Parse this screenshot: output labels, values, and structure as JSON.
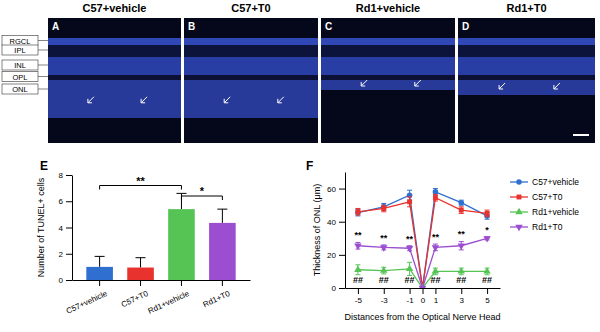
{
  "panels": {
    "labels": [
      "A",
      "B",
      "C",
      "D"
    ],
    "titles": [
      "C57+vehicle",
      "C57+T0",
      "Rd1+vehicle",
      "Rd1+T0"
    ],
    "layers": [
      "RGCL",
      "IPL",
      "INL",
      "OPL",
      "ONL"
    ]
  },
  "chart_data": [
    {
      "type": "bar",
      "panel": "E",
      "categories": [
        "C57+vehicle",
        "C57+T0",
        "Rd1+vehicle",
        "Rd1+T0"
      ],
      "values": [
        1,
        0.95,
        5.4,
        4.35
      ],
      "errors": [
        0.8,
        0.75,
        1.2,
        1.05
      ],
      "colors": [
        "#2f6fd0",
        "#e8322d",
        "#55c455",
        "#9b4fd0"
      ],
      "y_label": "Number of TUNEL+ cells",
      "ylim": [
        0,
        8
      ],
      "yticks": [
        0,
        2,
        4,
        6,
        8
      ],
      "annotations": [
        {
          "text": "**",
          "from": "C57+vehicle",
          "to": "Rd1+vehicle",
          "y": 7.2
        },
        {
          "text": "*",
          "from": "Rd1+vehicle",
          "to": "Rd1+T0",
          "y": 6.4
        }
      ]
    },
    {
      "type": "line",
      "panel": "F",
      "x": [
        -5,
        -3,
        -1,
        0,
        1,
        3,
        5
      ],
      "xlim": [
        -6,
        6
      ],
      "xticks": [
        -5,
        -3,
        -1,
        0,
        1,
        3,
        5
      ],
      "ylim": [
        0,
        70
      ],
      "yticks": [
        0,
        20,
        40,
        60
      ],
      "x_label": "Distances from the Optical Nerve Head",
      "y_label": "Thickness of ONL (μm)",
      "legend": "right",
      "series": [
        {
          "name": "C57+vehicle",
          "color": "#2f6fd0",
          "marker": "circle",
          "values": [
            45.5,
            49,
            56,
            0,
            58,
            51.5,
            43.5
          ],
          "errors": [
            2,
            2,
            3,
            0,
            2,
            1.5,
            2
          ]
        },
        {
          "name": "C57+T0",
          "color": "#e8322d",
          "marker": "square",
          "values": [
            46,
            48,
            52,
            0,
            54.5,
            47,
            45
          ],
          "errors": [
            2,
            2,
            3,
            0,
            2,
            2,
            2
          ]
        },
        {
          "name": "Rd1+vehicle",
          "color": "#55c455",
          "marker": "triangle",
          "values": [
            11,
            10.5,
            11.5,
            0,
            10,
            10,
            10
          ],
          "errors": [
            3,
            2,
            4,
            0,
            2,
            2,
            2
          ]
        },
        {
          "name": "Rd1+T0",
          "color": "#9b4fd0",
          "marker": "triangle-down",
          "values": [
            25.5,
            24.5,
            24,
            0,
            24.5,
            25.5,
            30
          ],
          "errors": [
            2,
            1.5,
            1.5,
            0,
            2,
            2.5,
            1
          ]
        }
      ],
      "annotations": [
        {
          "text": "**",
          "x": -5,
          "y": 30
        },
        {
          "text": "**",
          "x": -3,
          "y": 28.5
        },
        {
          "text": "**",
          "x": -1,
          "y": 28
        },
        {
          "text": "**",
          "x": 1,
          "y": 29
        },
        {
          "text": "**",
          "x": 3,
          "y": 31
        },
        {
          "text": "*",
          "x": 5,
          "y": 33
        },
        {
          "text": "##",
          "x": -5,
          "y": 3
        },
        {
          "text": "##",
          "x": -3,
          "y": 3
        },
        {
          "text": "##",
          "x": -1,
          "y": 3
        },
        {
          "text": "##",
          "x": 1,
          "y": 3
        },
        {
          "text": "##",
          "x": 3,
          "y": 3
        },
        {
          "text": "##",
          "x": 5,
          "y": 3
        }
      ]
    }
  ]
}
